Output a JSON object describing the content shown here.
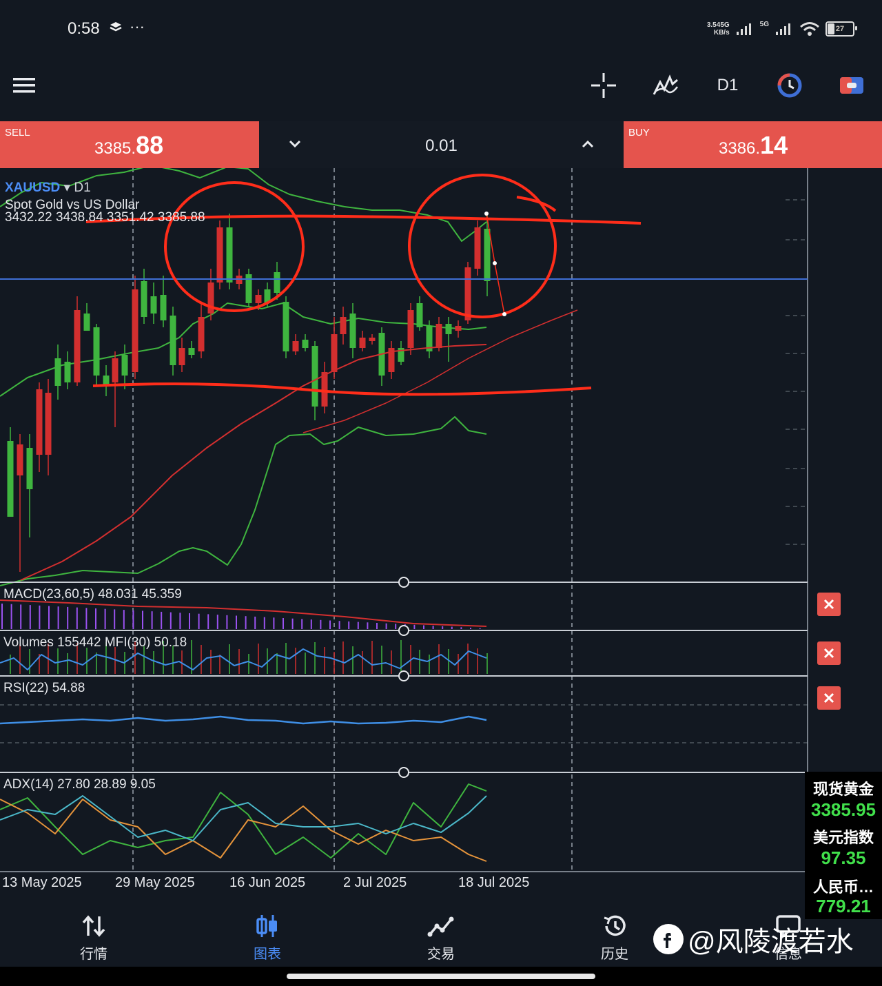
{
  "status": {
    "time": "0:58",
    "net_speed_top": "3.54",
    "net_speed_unit": "KB/s",
    "signal1": "5G",
    "signal2": "5G",
    "battery": "27"
  },
  "toolbar": {
    "timeframe": "D1",
    "menu_icon": "hamburger-icon",
    "crosshair_icon": "crosshair-icon",
    "indicators_icon": "indicators-icon",
    "objects_icon": "clock-icon",
    "trade_icon": "trade-icon"
  },
  "trade": {
    "sell_label": "SELL",
    "sell_price_main": "3385.",
    "sell_price_big": "88",
    "buy_label": "BUY",
    "buy_price_main": "3386.",
    "buy_price_big": "14",
    "lot": "0.01"
  },
  "chart": {
    "symbol": "XAUUSD",
    "timeframe": "D1",
    "description": "Spot Gold vs US Dollar",
    "ohlc": "3432.22 3438.84 3351.42 3385.88",
    "colors": {
      "bull": "#3fb53f",
      "bear": "#d32f2f",
      "bid_line": "#3f6fd6",
      "annotation": "#ff2d1a"
    }
  },
  "chart_data": {
    "type": "candlestick",
    "title": "XAUUSD D1 Spot Gold vs US Dollar",
    "x_labels": [
      "13 May 2025",
      "29 May 2025",
      "16 Jun 2025",
      "2 Jul 2025",
      "18 Jul 2025"
    ],
    "last": {
      "open": 3432.22,
      "high": 3438.84,
      "low": 3351.42,
      "close": 3385.88
    },
    "grid": true
  },
  "indicators": {
    "macd": "MACD(23,60,5) 48.031 45.359",
    "volumes": "Volumes 155442 MFI(30) 50.18",
    "rsi": "RSI(22) 54.88",
    "adx": "ADX(14) 27.80 28.89 9.05"
  },
  "ticker": [
    {
      "name": "现货黄金",
      "value": "3385.95"
    },
    {
      "name": "美元指数",
      "value": "97.35"
    },
    {
      "name": "人民币…",
      "value": "779.21"
    }
  ],
  "nav": [
    {
      "label": "行情",
      "icon": "quotes-icon"
    },
    {
      "label": "图表",
      "icon": "chart-icon"
    },
    {
      "label": "交易",
      "icon": "trade-icon"
    },
    {
      "label": "历史",
      "icon": "history-icon"
    },
    {
      "label": "信息",
      "icon": "messages-icon"
    }
  ],
  "watermark": "@风陵渡若水"
}
